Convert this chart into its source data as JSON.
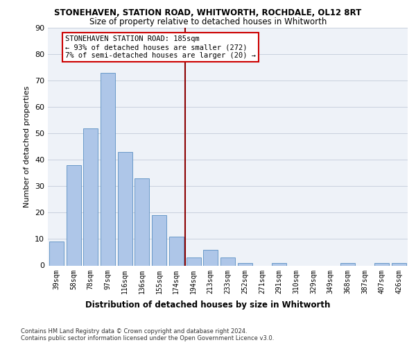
{
  "title_line1": "STONEHAVEN, STATION ROAD, WHITWORTH, ROCHDALE, OL12 8RT",
  "title_line2": "Size of property relative to detached houses in Whitworth",
  "xlabel": "Distribution of detached houses by size in Whitworth",
  "ylabel": "Number of detached properties",
  "categories": [
    "39sqm",
    "58sqm",
    "78sqm",
    "97sqm",
    "116sqm",
    "136sqm",
    "155sqm",
    "174sqm",
    "194sqm",
    "213sqm",
    "233sqm",
    "252sqm",
    "271sqm",
    "291sqm",
    "310sqm",
    "329sqm",
    "349sqm",
    "368sqm",
    "387sqm",
    "407sqm",
    "426sqm"
  ],
  "values": [
    9,
    38,
    52,
    73,
    43,
    33,
    19,
    11,
    3,
    6,
    3,
    1,
    0,
    1,
    0,
    0,
    0,
    1,
    0,
    1,
    1
  ],
  "bar_color": "#aec6e8",
  "bar_edge_color": "#5a8fc2",
  "vline_x": 7.5,
  "vline_color": "#8b0000",
  "ylim": [
    0,
    90
  ],
  "yticks": [
    0,
    10,
    20,
    30,
    40,
    50,
    60,
    70,
    80,
    90
  ],
  "annotation_text": "STONEHAVEN STATION ROAD: 185sqm\n← 93% of detached houses are smaller (272)\n7% of semi-detached houses are larger (20) →",
  "annotation_box_color": "#ffffff",
  "annotation_box_edge": "#cc0000",
  "footer_text": "Contains HM Land Registry data © Crown copyright and database right 2024.\nContains public sector information licensed under the Open Government Licence v3.0.",
  "bg_color": "#eef2f8",
  "grid_color": "#c8d0de"
}
